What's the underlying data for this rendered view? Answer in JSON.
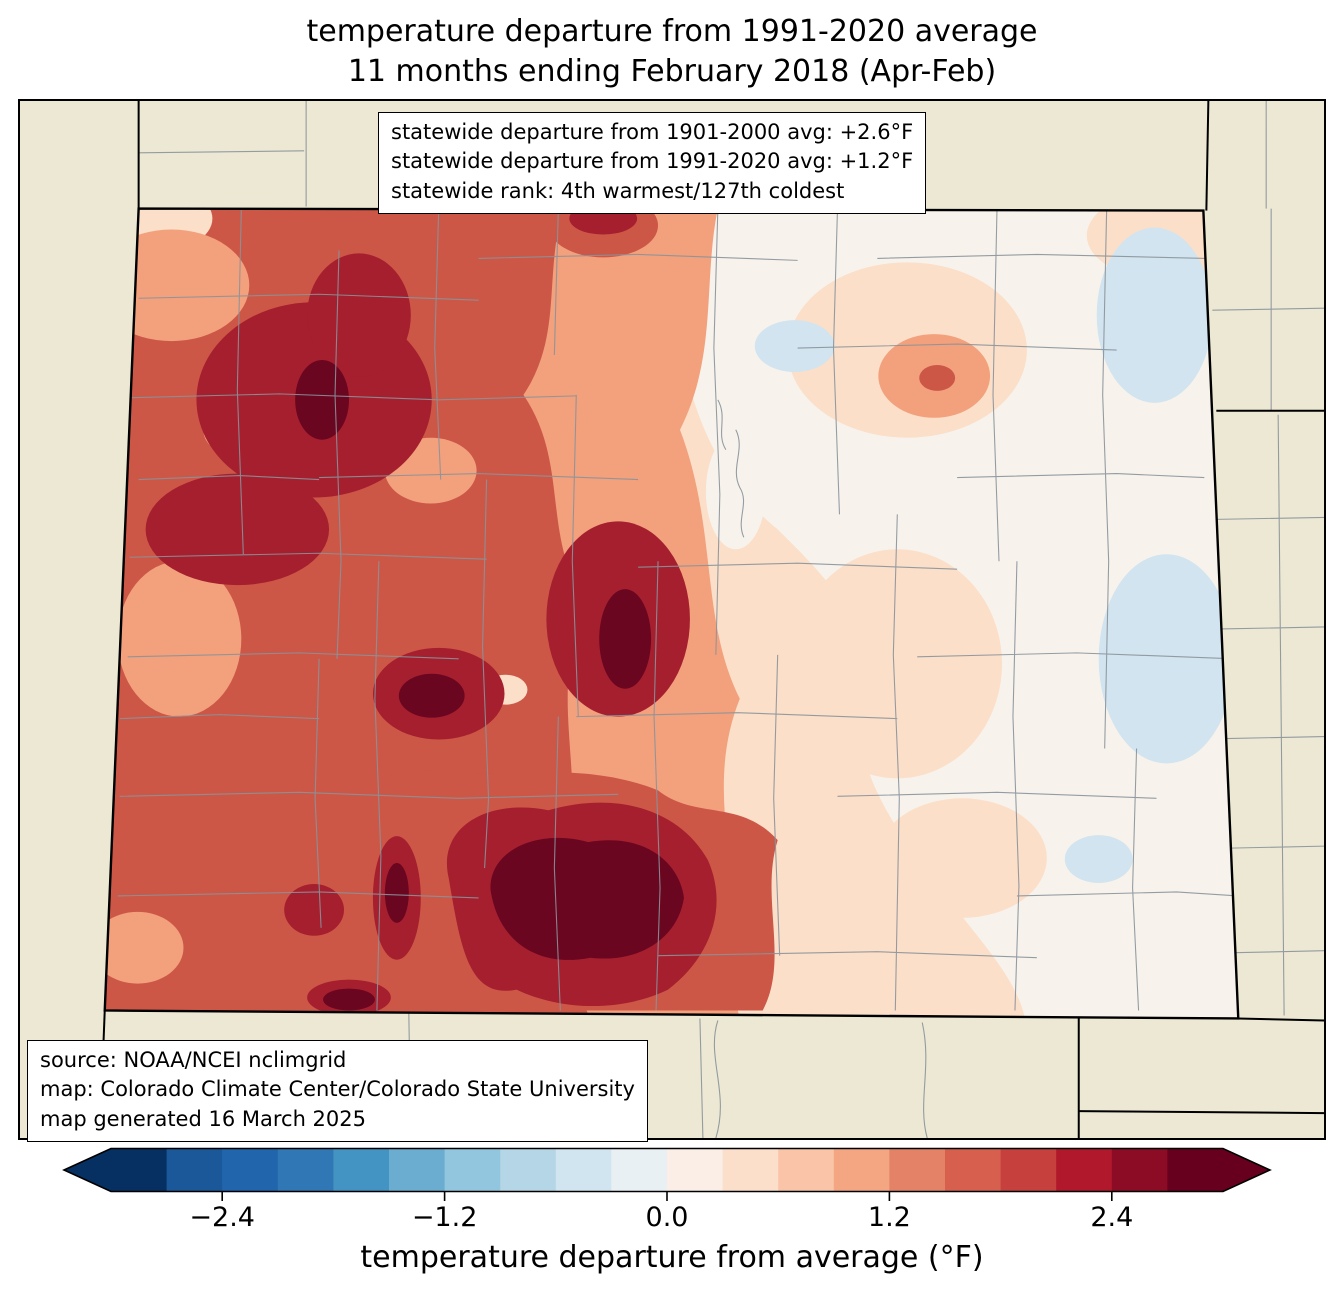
{
  "title": {
    "line1": "temperature departure from 1991-2020 average",
    "line2": "11 months ending February 2018 (Apr-Feb)"
  },
  "stats_box": {
    "line1": "statewide departure from 1901-2000 avg: +2.6°F",
    "line2": "statewide departure from 1991-2020 avg: +1.2°F",
    "line3": "statewide rank: 4th warmest/127th coldest"
  },
  "source_box": {
    "line1": "source: NOAA/NCEI nclimgrid",
    "line2": "map: Colorado Climate Center/Colorado State University",
    "line3": "map generated 16 March 2025"
  },
  "colorbar": {
    "label": "temperature departure from average (°F)",
    "range": [
      -3.0,
      3.0
    ],
    "ticks": [
      {
        "value": -2.4,
        "label": "−2.4"
      },
      {
        "value": -1.2,
        "label": "−1.2"
      },
      {
        "value": 0.0,
        "label": "0.0"
      },
      {
        "value": 1.2,
        "label": "1.2"
      },
      {
        "value": 2.4,
        "label": "2.4"
      }
    ],
    "colors": [
      "#053061",
      "#1a5899",
      "#2166ac",
      "#3077b5",
      "#4393c3",
      "#6bacd1",
      "#92c5de",
      "#b4d6e6",
      "#d1e5f0",
      "#e8f0f3",
      "#faeee6",
      "#fbdfca",
      "#f9c4a7",
      "#f4a582",
      "#e48268",
      "#d6604d",
      "#c6413e",
      "#b2182b",
      "#8d0c25",
      "#67001f"
    ],
    "under": "#053061",
    "over": "#67001f"
  },
  "palette": {
    "outer": "#ece8d3",
    "pink_light": "#fbdfc9",
    "white_zero": "#f7f3ec",
    "blue_pale": "#d2e4ef",
    "salmon": "#f3a07c",
    "red_mid": "#cc5747",
    "red_dark": "#a51f2e",
    "red_darkest": "#6a0620",
    "county": "#8a939b"
  }
}
